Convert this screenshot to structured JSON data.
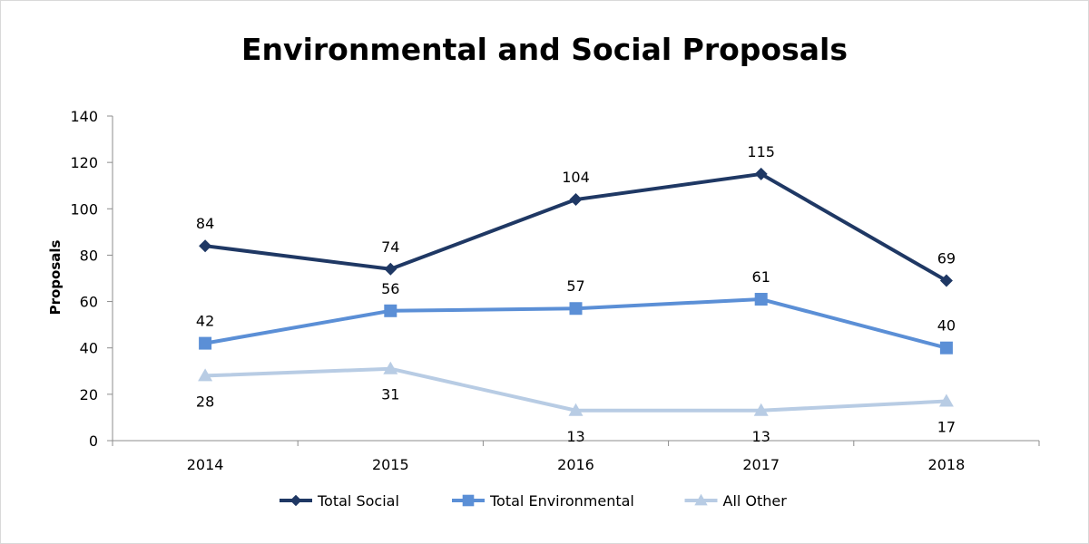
{
  "chart_data": {
    "type": "line",
    "title": "Environmental and Social Proposals",
    "xlabel": "",
    "ylabel": "Proposals",
    "categories": [
      "2014",
      "2015",
      "2016",
      "2017",
      "2018"
    ],
    "ylim": [
      0,
      140
    ],
    "yticks": [
      0,
      20,
      40,
      60,
      80,
      100,
      120,
      140
    ],
    "grid": false,
    "legend_position": "bottom",
    "series": [
      {
        "name": "Total Social",
        "values": [
          84,
          74,
          104,
          115,
          69
        ],
        "color": "#1f3864",
        "marker": "diamond",
        "label_position": "above"
      },
      {
        "name": "Total Environmental",
        "values": [
          42,
          56,
          57,
          61,
          40
        ],
        "color": "#5b8fd6",
        "marker": "square",
        "label_position": "above"
      },
      {
        "name": "All Other",
        "values": [
          28,
          31,
          13,
          13,
          17
        ],
        "color": "#b8cce4",
        "marker": "triangle",
        "label_position": "below"
      }
    ]
  }
}
